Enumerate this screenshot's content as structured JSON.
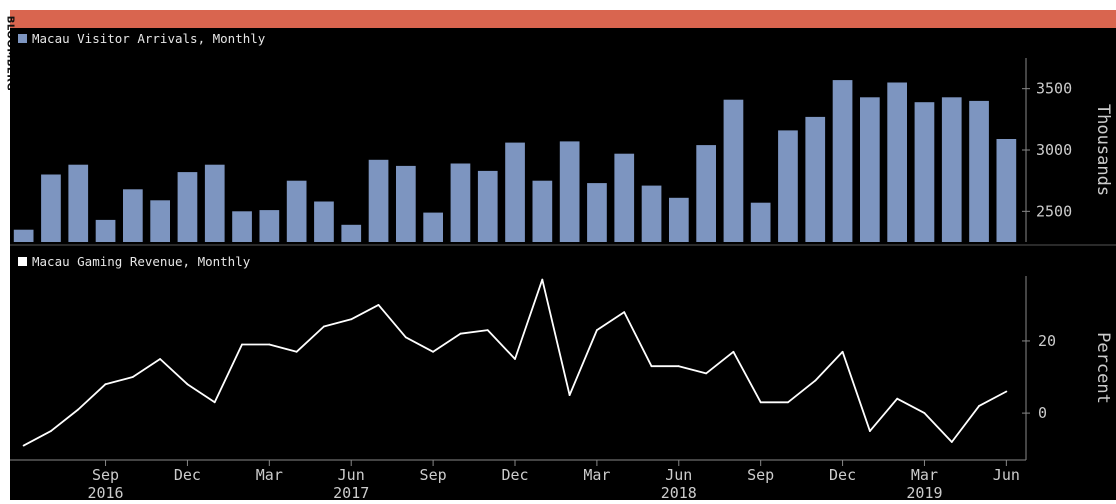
{
  "credit": "BLOOMBERG",
  "colors": {
    "bar": "#7d95c0",
    "line": "#ffffff",
    "background": "#000000",
    "banner": "#d9654f",
    "text": "#cccccc",
    "axis": "#888888"
  },
  "chart_data": [
    {
      "type": "bar",
      "legend": "Macau Visitor Arrivals, Monthly",
      "ylabel": "Thousands",
      "ylim": [
        2250,
        3750
      ],
      "y_ticks": [
        2500,
        3000,
        3500
      ],
      "x": [
        "2016-06",
        "2016-07",
        "2016-08",
        "2016-09",
        "2016-10",
        "2016-11",
        "2016-12",
        "2017-01",
        "2017-02",
        "2017-03",
        "2017-04",
        "2017-05",
        "2017-06",
        "2017-07",
        "2017-08",
        "2017-09",
        "2017-10",
        "2017-11",
        "2017-12",
        "2018-01",
        "2018-02",
        "2018-03",
        "2018-04",
        "2018-05",
        "2018-06",
        "2018-07",
        "2018-08",
        "2018-09",
        "2018-10",
        "2018-11",
        "2018-12",
        "2019-01",
        "2019-02",
        "2019-03",
        "2019-04",
        "2019-05",
        "2019-06"
      ],
      "values": [
        2350,
        2800,
        2880,
        2430,
        2680,
        2590,
        2820,
        2880,
        2500,
        2510,
        2750,
        2580,
        2390,
        2920,
        2870,
        2490,
        2890,
        2830,
        3060,
        2750,
        3070,
        2730,
        2970,
        2710,
        2610,
        3040,
        3410,
        2570,
        3160,
        3270,
        3570,
        3430,
        3550,
        3390,
        3430,
        3400,
        3090
      ]
    },
    {
      "type": "line",
      "legend": "Macau Gaming Revenue, Monthly",
      "ylabel": "Percent",
      "ylim": [
        -13,
        38
      ],
      "y_ticks": [
        0,
        20
      ],
      "x": [
        "2016-06",
        "2016-07",
        "2016-08",
        "2016-09",
        "2016-10",
        "2016-11",
        "2016-12",
        "2017-01",
        "2017-02",
        "2017-03",
        "2017-04",
        "2017-05",
        "2017-06",
        "2017-07",
        "2017-08",
        "2017-09",
        "2017-10",
        "2017-11",
        "2017-12",
        "2018-01",
        "2018-02",
        "2018-03",
        "2018-04",
        "2018-05",
        "2018-06",
        "2018-07",
        "2018-08",
        "2018-09",
        "2018-10",
        "2018-11",
        "2018-12",
        "2019-01",
        "2019-02",
        "2019-03",
        "2019-04",
        "2019-05",
        "2019-06"
      ],
      "values": [
        -9,
        -5,
        1,
        8,
        10,
        15,
        8,
        3,
        19,
        19,
        17,
        24,
        26,
        30,
        21,
        17,
        22,
        23,
        15,
        37,
        5,
        23,
        28,
        13,
        13,
        11,
        17,
        3,
        3,
        9,
        17,
        -5,
        4,
        0,
        -8,
        2,
        6
      ],
      "x_ticks": [
        {
          "month": "Sep",
          "year": "2016",
          "index": 3
        },
        {
          "month": "Dec",
          "year": "",
          "index": 6
        },
        {
          "month": "Mar",
          "year": "",
          "index": 9
        },
        {
          "month": "Jun",
          "year": "2017",
          "index": 12
        },
        {
          "month": "Sep",
          "year": "",
          "index": 15
        },
        {
          "month": "Dec",
          "year": "",
          "index": 18
        },
        {
          "month": "Mar",
          "year": "",
          "index": 21
        },
        {
          "month": "Jun",
          "year": "2018",
          "index": 24
        },
        {
          "month": "Sep",
          "year": "",
          "index": 27
        },
        {
          "month": "Dec",
          "year": "",
          "index": 30
        },
        {
          "month": "Mar",
          "year": "2019",
          "index": 33
        },
        {
          "month": "Jun",
          "year": "",
          "index": 36
        }
      ]
    }
  ]
}
